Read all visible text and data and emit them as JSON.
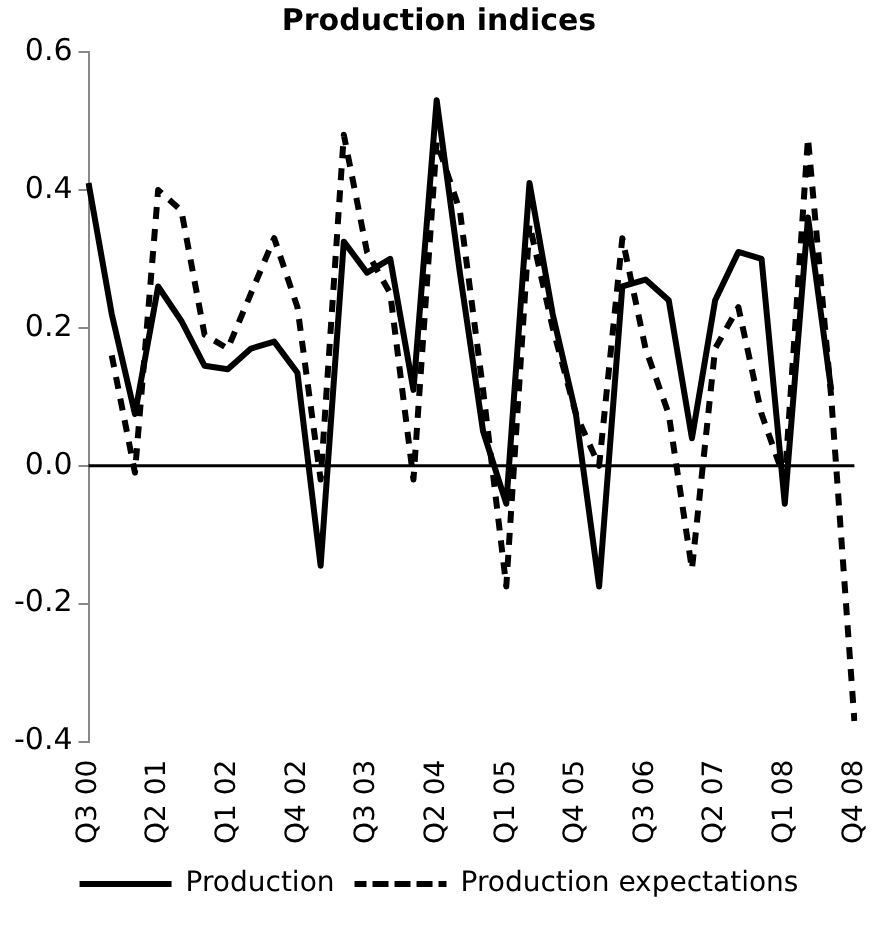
{
  "chart_data": {
    "type": "line",
    "title": "Production indices",
    "categories": [
      "Q3 00",
      null,
      null,
      "Q2 01",
      null,
      null,
      "Q1 02",
      null,
      null,
      "Q4 02",
      null,
      null,
      "Q3 03",
      null,
      null,
      "Q2 04",
      null,
      null,
      "Q1 05",
      null,
      null,
      "Q4 05",
      null,
      null,
      "Q3 06",
      null,
      null,
      "Q2 07",
      null,
      null,
      "Q1 08",
      null,
      null,
      "Q4 08"
    ],
    "series": [
      {
        "name": "Production",
        "color": "#000000",
        "line_style": "solid",
        "values": [
          0.41,
          0.22,
          0.075,
          0.26,
          0.21,
          0.145,
          0.14,
          0.17,
          0.18,
          0.135,
          -0.145,
          0.325,
          0.28,
          0.3,
          0.11,
          0.53,
          0.28,
          0.05,
          -0.055,
          0.41,
          0.22,
          0.075,
          -0.175,
          0.26,
          0.27,
          0.24,
          0.04,
          0.24,
          0.31,
          0.3,
          -0.055,
          0.36,
          0.11,
          null
        ]
      },
      {
        "name": "Production expectations",
        "color": "#000000",
        "line_style": "dashed",
        "values": [
          null,
          0.16,
          -0.01,
          0.4,
          0.37,
          0.19,
          0.17,
          0.25,
          0.33,
          0.23,
          -0.02,
          0.48,
          0.31,
          0.25,
          -0.02,
          0.47,
          0.37,
          0.11,
          -0.175,
          0.35,
          0.2,
          0.075,
          0.0,
          0.33,
          0.17,
          0.075,
          -0.15,
          0.17,
          0.23,
          0.075,
          -0.02,
          0.475,
          0.1,
          -0.37
        ]
      }
    ],
    "ylim": [
      -0.4,
      0.6
    ],
    "yticks": [
      -0.4,
      -0.2,
      {
        "value": 0,
        "label": "0.0"
      },
      0.2,
      0.4,
      0.6
    ],
    "ref_lines": [
      {
        "axis": "y",
        "value": 0,
        "color": "#000000"
      }
    ],
    "grid": false,
    "legend": "bottom",
    "marker": "none"
  }
}
